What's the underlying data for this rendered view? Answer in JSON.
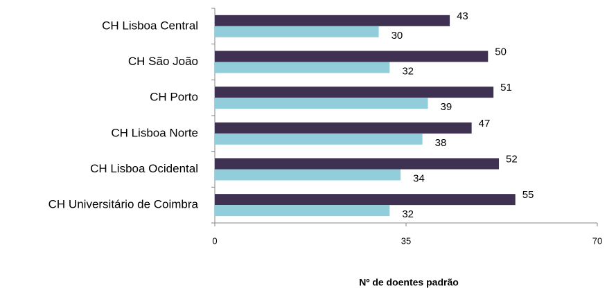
{
  "chart_data": {
    "type": "bar",
    "orientation": "horizontal",
    "categories": [
      "CH Lisboa Central",
      "CH São João",
      "CH Porto",
      "CH Lisboa Norte",
      "CH Lisboa Ocidental",
      "CH Universitário de Coimbra"
    ],
    "series": [
      {
        "color": "#3e3151",
        "values": [
          43,
          50,
          51,
          47,
          52,
          55
        ]
      },
      {
        "color": "#92cddc",
        "values": [
          30,
          32,
          39,
          38,
          34,
          32
        ]
      }
    ],
    "xlim": [
      0,
      70
    ],
    "xticks": [
      0,
      35,
      70
    ],
    "x_label": "Nº de doentes padrão"
  }
}
